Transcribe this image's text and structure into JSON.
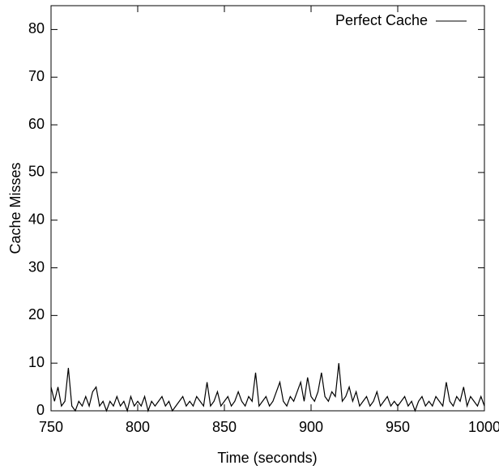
{
  "chart_data": {
    "type": "line",
    "xlabel": "Time (seconds)",
    "ylabel": "Cache Misses",
    "x": [
      750,
      752,
      754,
      756,
      758,
      760,
      762,
      764,
      766,
      768,
      770,
      772,
      774,
      776,
      778,
      780,
      782,
      784,
      786,
      788,
      790,
      792,
      794,
      796,
      798,
      800,
      802,
      804,
      806,
      808,
      810,
      812,
      814,
      816,
      818,
      820,
      822,
      824,
      826,
      828,
      830,
      832,
      834,
      836,
      838,
      840,
      842,
      844,
      846,
      848,
      850,
      852,
      854,
      856,
      858,
      860,
      862,
      864,
      866,
      868,
      870,
      872,
      874,
      876,
      878,
      880,
      882,
      884,
      886,
      888,
      890,
      892,
      894,
      896,
      898,
      900,
      902,
      904,
      906,
      908,
      910,
      912,
      914,
      916,
      918,
      920,
      922,
      924,
      926,
      928,
      930,
      932,
      934,
      936,
      938,
      940,
      942,
      944,
      946,
      948,
      950,
      952,
      954,
      956,
      958,
      960,
      962,
      964,
      966,
      968,
      970,
      972,
      974,
      976,
      978,
      980,
      982,
      984,
      986,
      988,
      990,
      992,
      994,
      996,
      998,
      1000
    ],
    "series": [
      {
        "name": "Perfect Cache",
        "color": "#000000",
        "values": [
          5,
          2,
          5,
          1,
          2,
          9,
          1,
          0,
          2,
          1,
          3,
          1,
          4,
          5,
          1,
          2,
          0,
          2,
          1,
          3,
          1,
          2,
          0,
          3,
          1,
          2,
          1,
          3,
          0,
          2,
          1,
          2,
          3,
          1,
          2,
          0,
          1,
          2,
          3,
          1,
          2,
          1,
          3,
          2,
          1,
          6,
          1,
          2,
          4,
          1,
          2,
          3,
          1,
          2,
          4,
          2,
          1,
          3,
          2,
          8,
          1,
          2,
          3,
          1,
          2,
          4,
          6,
          2,
          1,
          3,
          2,
          4,
          6,
          2,
          7,
          3,
          2,
          4,
          8,
          3,
          2,
          4,
          3,
          10,
          2,
          3,
          5,
          2,
          4,
          1,
          2,
          3,
          1,
          2,
          4,
          1,
          2,
          3,
          1,
          2,
          1,
          2,
          3,
          1,
          2,
          0,
          2,
          3,
          1,
          2,
          1,
          3,
          2,
          1,
          6,
          2,
          1,
          3,
          2,
          5,
          1,
          3,
          2,
          1,
          3,
          1
        ]
      }
    ],
    "xlim": [
      750,
      1000
    ],
    "xticks": [
      750,
      800,
      850,
      900,
      950,
      1000
    ],
    "ylim": [
      0,
      85
    ],
    "yticks": [
      0,
      10,
      20,
      30,
      40,
      50,
      60,
      70,
      80
    ],
    "legend": "top right"
  }
}
